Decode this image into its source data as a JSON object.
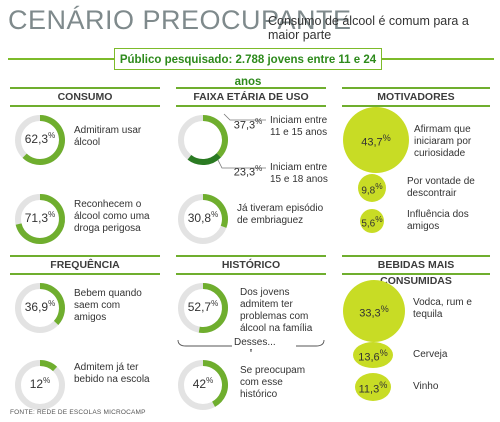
{
  "header": {
    "title": "CENÁRIO PREOCUPANTE",
    "subtitle": "Consumo de álcool é comum para a maior parte",
    "banner": "Público pesquisado: 2.788 jovens entre 11 e 24 anos"
  },
  "colors": {
    "accent": "#6fae2e",
    "ring_dark": "#2a7a22",
    "bubble": "#c8dc25",
    "ring_track": "#e3e3e3"
  },
  "sections": {
    "consumo": "CONSUMO",
    "faixa": "FAIXA ETÁRIA DE USO",
    "motivadores": "MOTIVADORES",
    "frequencia": "FREQUÊNCIA",
    "historico": "HISTÓRICO",
    "bebidas": "BEBIDAS MAIS CONSUMIDAS"
  },
  "labels": {
    "c1_val": "62,3",
    "c1_txt": "Admitiram usar álcool",
    "c2_val": "71,3",
    "c2_txt": "Reconhecem o álcool como uma droga perigosa",
    "f1_val": "37,3",
    "f1_txt": "Iniciam entre 11 e 15 anos",
    "f2_val": "23,3",
    "f2_txt": "Iniciam entre 15 e 18 anos",
    "f3_val": "30,8",
    "f3_txt": "Já tiveram episódio de embriaguez",
    "m1_val": "43,7",
    "m1_txt": "Afirmam que iniciaram por curiosidade",
    "m2_val": "9,8",
    "m2_txt": "Por vontade de descontrair",
    "m3_val": "5,6",
    "m3_txt": "Influência dos amigos",
    "q1_val": "36,9",
    "q1_txt": "Bebem quando saem com amigos",
    "q2_val": "12",
    "q2_txt": "Admitem já ter bebido na escola",
    "h1_val": "52,7",
    "h1_txt": "Dos jovens admitem ter problemas com álcool na família",
    "h_desses": "Desses...",
    "h2_val": "42",
    "h2_txt": "Se preocupam com esse histórico",
    "b1_val": "33,3",
    "b1_txt": "Vodca, rum e tequila",
    "b2_val": "13,6",
    "b2_txt": "Cerveja",
    "b3_val": "11,3",
    "b3_txt": "Vinho",
    "pct": "%"
  },
  "source": "FONTE: REDE DE ESCOLAS MICROCAMP",
  "chart_data": [
    {
      "type": "pie",
      "title": "CONSUMO",
      "categories": [
        "Admitiram usar álcool",
        "Reconhecem o álcool como uma droga perigosa"
      ],
      "values": [
        62.3,
        71.3
      ],
      "unit": "%"
    },
    {
      "type": "pie",
      "title": "FAIXA ETÁRIA DE USO",
      "categories": [
        "Iniciam entre 11 e 15 anos",
        "Iniciam entre 15 e 18 anos",
        "Já tiveram episódio de embriaguez"
      ],
      "values": [
        37.3,
        23.3,
        30.8
      ],
      "unit": "%"
    },
    {
      "type": "scatter",
      "title": "MOTIVADORES",
      "categories": [
        "Afirmam que iniciaram por curiosidade",
        "Por vontade de descontrair",
        "Influência dos amigos"
      ],
      "values": [
        43.7,
        9.8,
        5.6
      ],
      "unit": "%"
    },
    {
      "type": "pie",
      "title": "FREQUÊNCIA",
      "categories": [
        "Bebem quando saem com amigos",
        "Admitem já ter bebido na escola"
      ],
      "values": [
        36.9,
        12
      ],
      "unit": "%"
    },
    {
      "type": "pie",
      "title": "HISTÓRICO",
      "categories": [
        "Dos jovens admitem ter problemas com álcool na família",
        "Se preocupam com esse histórico"
      ],
      "values": [
        52.7,
        42
      ],
      "unit": "%"
    },
    {
      "type": "scatter",
      "title": "BEBIDAS MAIS CONSUMIDAS",
      "categories": [
        "Vodca, rum e tequila",
        "Cerveja",
        "Vinho"
      ],
      "values": [
        33.3,
        13.6,
        11.3
      ],
      "unit": "%"
    }
  ]
}
